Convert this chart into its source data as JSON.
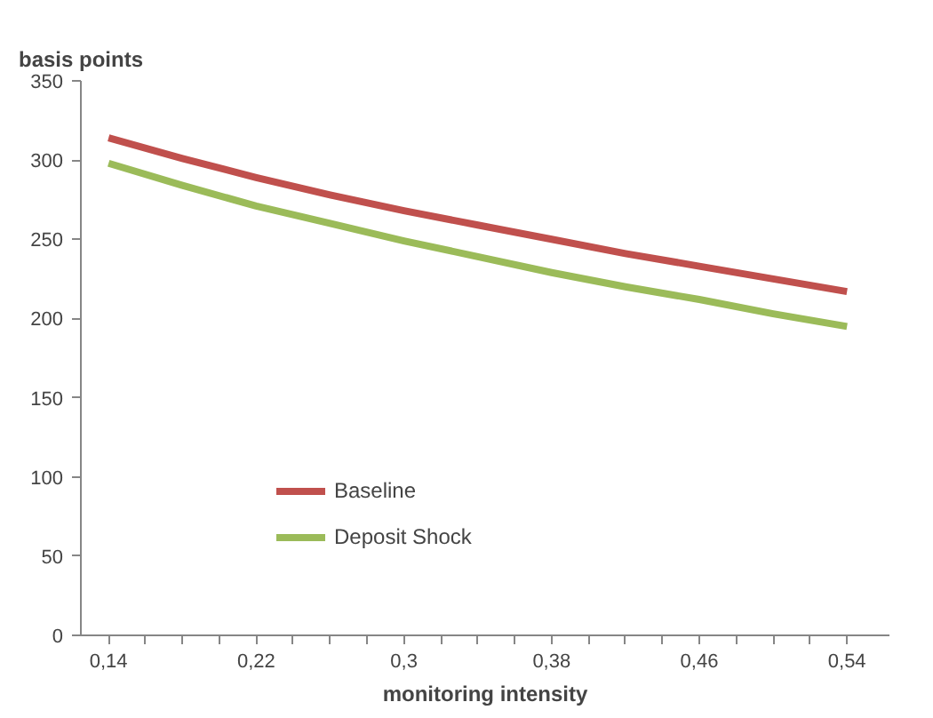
{
  "chart_data": {
    "type": "line",
    "xlabel": "monitoring intensity",
    "ylabel": "basis points",
    "x": [
      0.14,
      0.18,
      0.22,
      0.26,
      0.3,
      0.34,
      0.38,
      0.42,
      0.46,
      0.5,
      0.54
    ],
    "series": [
      {
        "name": "Baseline",
        "color": "#c0504d",
        "values": [
          314,
          301,
          289,
          278,
          268,
          259,
          250,
          241,
          233,
          225,
          217
        ]
      },
      {
        "name": "Deposit Shock",
        "color": "#9bbb59",
        "values": [
          298,
          284,
          271,
          260,
          249,
          239,
          229,
          220,
          212,
          203,
          195
        ]
      }
    ],
    "xlim": [
      0.125,
      0.563
    ],
    "xticks": [
      {
        "value": 0.14,
        "label": "0,14"
      },
      {
        "value": 0.16,
        "label": null
      },
      {
        "value": 0.18,
        "label": null
      },
      {
        "value": 0.2,
        "label": null
      },
      {
        "value": 0.22,
        "label": "0,22"
      },
      {
        "value": 0.24,
        "label": null
      },
      {
        "value": 0.26,
        "label": null
      },
      {
        "value": 0.28,
        "label": null
      },
      {
        "value": 0.3,
        "label": "0,3"
      },
      {
        "value": 0.32,
        "label": null
      },
      {
        "value": 0.34,
        "label": null
      },
      {
        "value": 0.36,
        "label": null
      },
      {
        "value": 0.38,
        "label": "0,38"
      },
      {
        "value": 0.4,
        "label": null
      },
      {
        "value": 0.42,
        "label": null
      },
      {
        "value": 0.44,
        "label": null
      },
      {
        "value": 0.46,
        "label": "0,46"
      },
      {
        "value": 0.48,
        "label": null
      },
      {
        "value": 0.5,
        "label": null
      },
      {
        "value": 0.52,
        "label": null
      },
      {
        "value": 0.54,
        "label": "0,54"
      }
    ],
    "ylim": [
      0,
      350
    ],
    "yticks": [
      0,
      50,
      100,
      150,
      200,
      250,
      300,
      350
    ],
    "grid": false,
    "legend": "bottom left",
    "marker": "none",
    "line_style": "solid"
  }
}
